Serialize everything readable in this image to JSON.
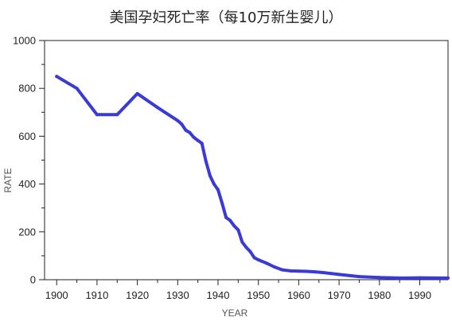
{
  "chart_data": {
    "type": "line",
    "title": "美国孕妇死亡率（每10万新生婴儿）",
    "xlabel": "YEAR",
    "ylabel": "RATE",
    "xlim": [
      1897,
      1997
    ],
    "ylim": [
      0,
      1000
    ],
    "x_ticks": [
      1900,
      1910,
      1920,
      1930,
      1940,
      1950,
      1960,
      1970,
      1980,
      1990
    ],
    "y_ticks": [
      0,
      200,
      400,
      600,
      800,
      1000
    ],
    "grid": false,
    "legend": "none",
    "series": [
      {
        "color": "#3a3ad6",
        "x": [
          1900,
          1905,
          1910,
          1915,
          1920,
          1925,
          1930,
          1931,
          1932,
          1933,
          1934,
          1935,
          1936,
          1937,
          1938,
          1939,
          1940,
          1941,
          1942,
          1943,
          1944,
          1945,
          1946,
          1947,
          1948,
          1949,
          1950,
          1952,
          1954,
          1956,
          1958,
          1960,
          1962,
          1964,
          1966,
          1968,
          1970,
          1975,
          1980,
          1985,
          1990,
          1995,
          1997
        ],
        "values": [
          850,
          800,
          690,
          690,
          778,
          720,
          665,
          650,
          625,
          615,
          595,
          582,
          570,
          495,
          435,
          400,
          376,
          320,
          260,
          248,
          225,
          208,
          157,
          135,
          117,
          92,
          83,
          69,
          53,
          41,
          37,
          36,
          35,
          33,
          30,
          26,
          22,
          13,
          9,
          7,
          8,
          7,
          7
        ]
      }
    ]
  }
}
